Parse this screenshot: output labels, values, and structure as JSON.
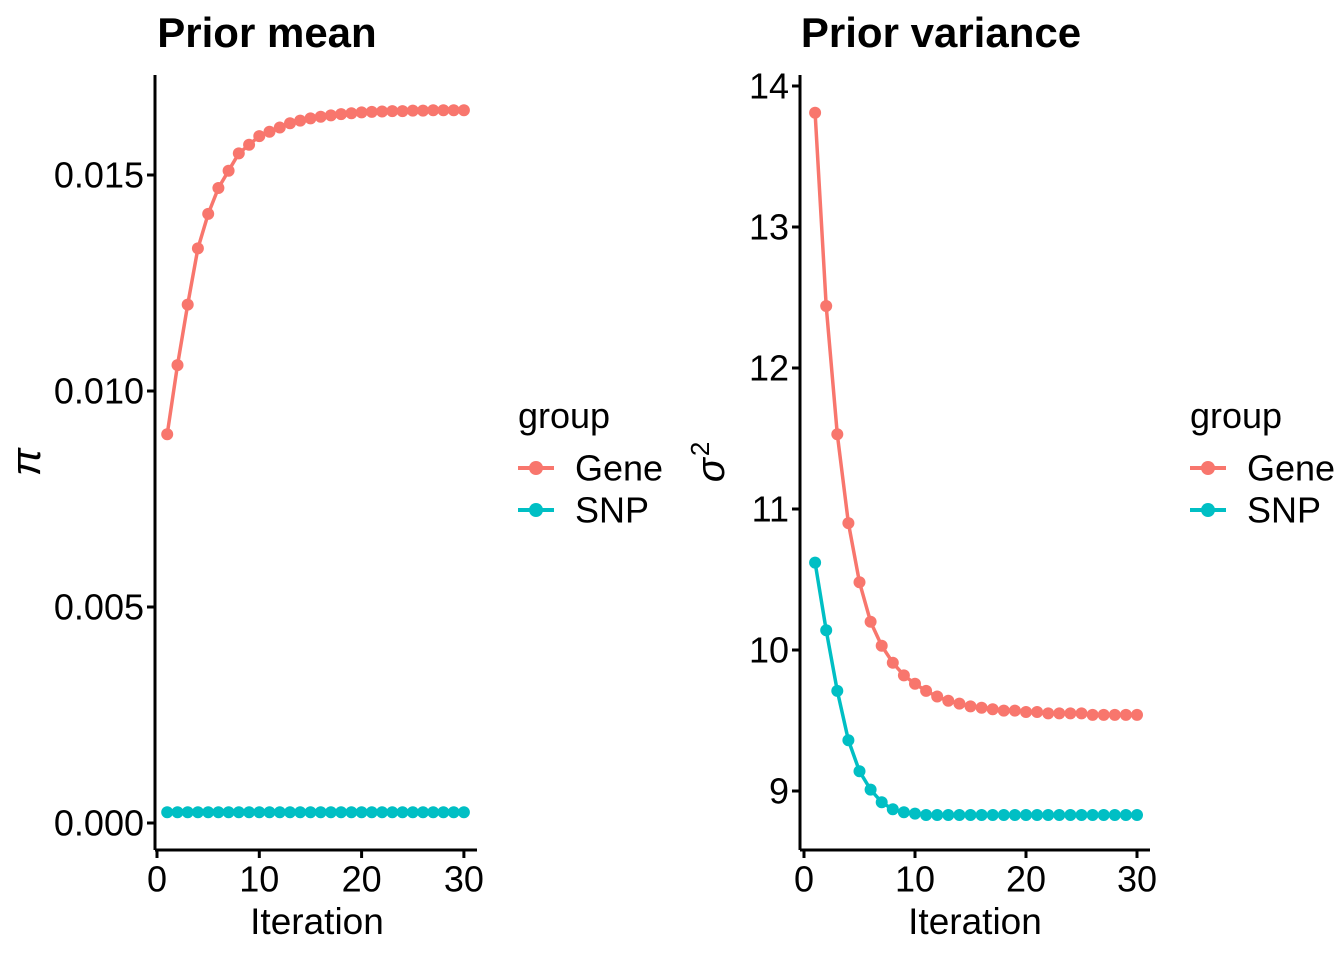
{
  "figure": {
    "background_color": "#FFFFFF",
    "text_color": "#000000",
    "series_colors": {
      "Gene": "#F8766D",
      "SNP": "#00BFC4"
    }
  },
  "chart_data": [
    {
      "id": "prior-mean",
      "type": "line",
      "title": "Prior mean",
      "xlabel": "Iteration",
      "ylabel": "π",
      "x": [
        1,
        2,
        3,
        4,
        5,
        6,
        7,
        8,
        9,
        10,
        11,
        12,
        13,
        14,
        15,
        16,
        17,
        18,
        19,
        20,
        21,
        22,
        23,
        24,
        25,
        26,
        27,
        28,
        29,
        30
      ],
      "series": [
        {
          "name": "Gene",
          "color": "#F8766D",
          "values": [
            0.009,
            0.0106,
            0.012,
            0.0133,
            0.0141,
            0.0147,
            0.0151,
            0.0155,
            0.0157,
            0.0159,
            0.016,
            0.0161,
            0.0162,
            0.01626,
            0.01631,
            0.01635,
            0.01638,
            0.01641,
            0.01643,
            0.01645,
            0.01646,
            0.01647,
            0.01648,
            0.01648,
            0.01649,
            0.01649,
            0.0165,
            0.0165,
            0.0165,
            0.0165
          ]
        },
        {
          "name": "SNP",
          "color": "#00BFC4",
          "values": [
            0.00025,
            0.00025,
            0.00025,
            0.00025,
            0.00025,
            0.00025,
            0.00025,
            0.00025,
            0.00025,
            0.00025,
            0.00025,
            0.00025,
            0.00025,
            0.00025,
            0.00025,
            0.00025,
            0.00025,
            0.00025,
            0.00025,
            0.00025,
            0.00025,
            0.00025,
            0.00025,
            0.00025,
            0.00025,
            0.00025,
            0.00025,
            0.00025,
            0.00025,
            0.00025
          ]
        }
      ],
      "xlim": [
        0,
        31
      ],
      "ylim": [
        0,
        0.0173
      ],
      "xticks": [
        0,
        10,
        20,
        30
      ],
      "xtick_labels": [
        "0",
        "10",
        "20",
        "30"
      ],
      "yticks": [
        0,
        0.005,
        0.01,
        0.015
      ],
      "ytick_labels": [
        "0.000",
        "0.005",
        "0.010",
        "0.015"
      ],
      "grid": false,
      "legend": {
        "title": "group",
        "entries": [
          "Gene",
          "SNP"
        ],
        "position": "right"
      }
    },
    {
      "id": "prior-variance",
      "type": "line",
      "title": "Prior variance",
      "xlabel": "Iteration",
      "ylabel": "σ²",
      "ylabel_base": "σ",
      "ylabel_sup": "2",
      "x": [
        1,
        2,
        3,
        4,
        5,
        6,
        7,
        8,
        9,
        10,
        11,
        12,
        13,
        14,
        15,
        16,
        17,
        18,
        19,
        20,
        21,
        22,
        23,
        24,
        25,
        26,
        27,
        28,
        29,
        30
      ],
      "series": [
        {
          "name": "Gene",
          "color": "#F8766D",
          "values": [
            13.81,
            12.44,
            11.53,
            10.9,
            10.48,
            10.2,
            10.03,
            9.91,
            9.82,
            9.76,
            9.71,
            9.67,
            9.64,
            9.62,
            9.6,
            9.59,
            9.58,
            9.57,
            9.57,
            9.56,
            9.56,
            9.55,
            9.55,
            9.55,
            9.55,
            9.54,
            9.54,
            9.54,
            9.54,
            9.54
          ]
        },
        {
          "name": "SNP",
          "color": "#00BFC4",
          "values": [
            10.62,
            10.14,
            9.71,
            9.36,
            9.14,
            9.01,
            8.92,
            8.87,
            8.85,
            8.84,
            8.83,
            8.83,
            8.83,
            8.83,
            8.83,
            8.83,
            8.83,
            8.83,
            8.83,
            8.83,
            8.83,
            8.83,
            8.83,
            8.83,
            8.83,
            8.83,
            8.83,
            8.83,
            8.83,
            8.83
          ]
        }
      ],
      "xlim": [
        0,
        31
      ],
      "ylim": [
        8.6,
        14.1
      ],
      "xticks": [
        0,
        10,
        20,
        30
      ],
      "xtick_labels": [
        "0",
        "10",
        "20",
        "30"
      ],
      "yticks": [
        9,
        10,
        11,
        12,
        13,
        14
      ],
      "ytick_labels": [
        "9",
        "10",
        "11",
        "12",
        "13",
        "14"
      ],
      "grid": false,
      "legend": {
        "title": "group",
        "entries": [
          "Gene",
          "SNP"
        ],
        "position": "right"
      }
    }
  ]
}
